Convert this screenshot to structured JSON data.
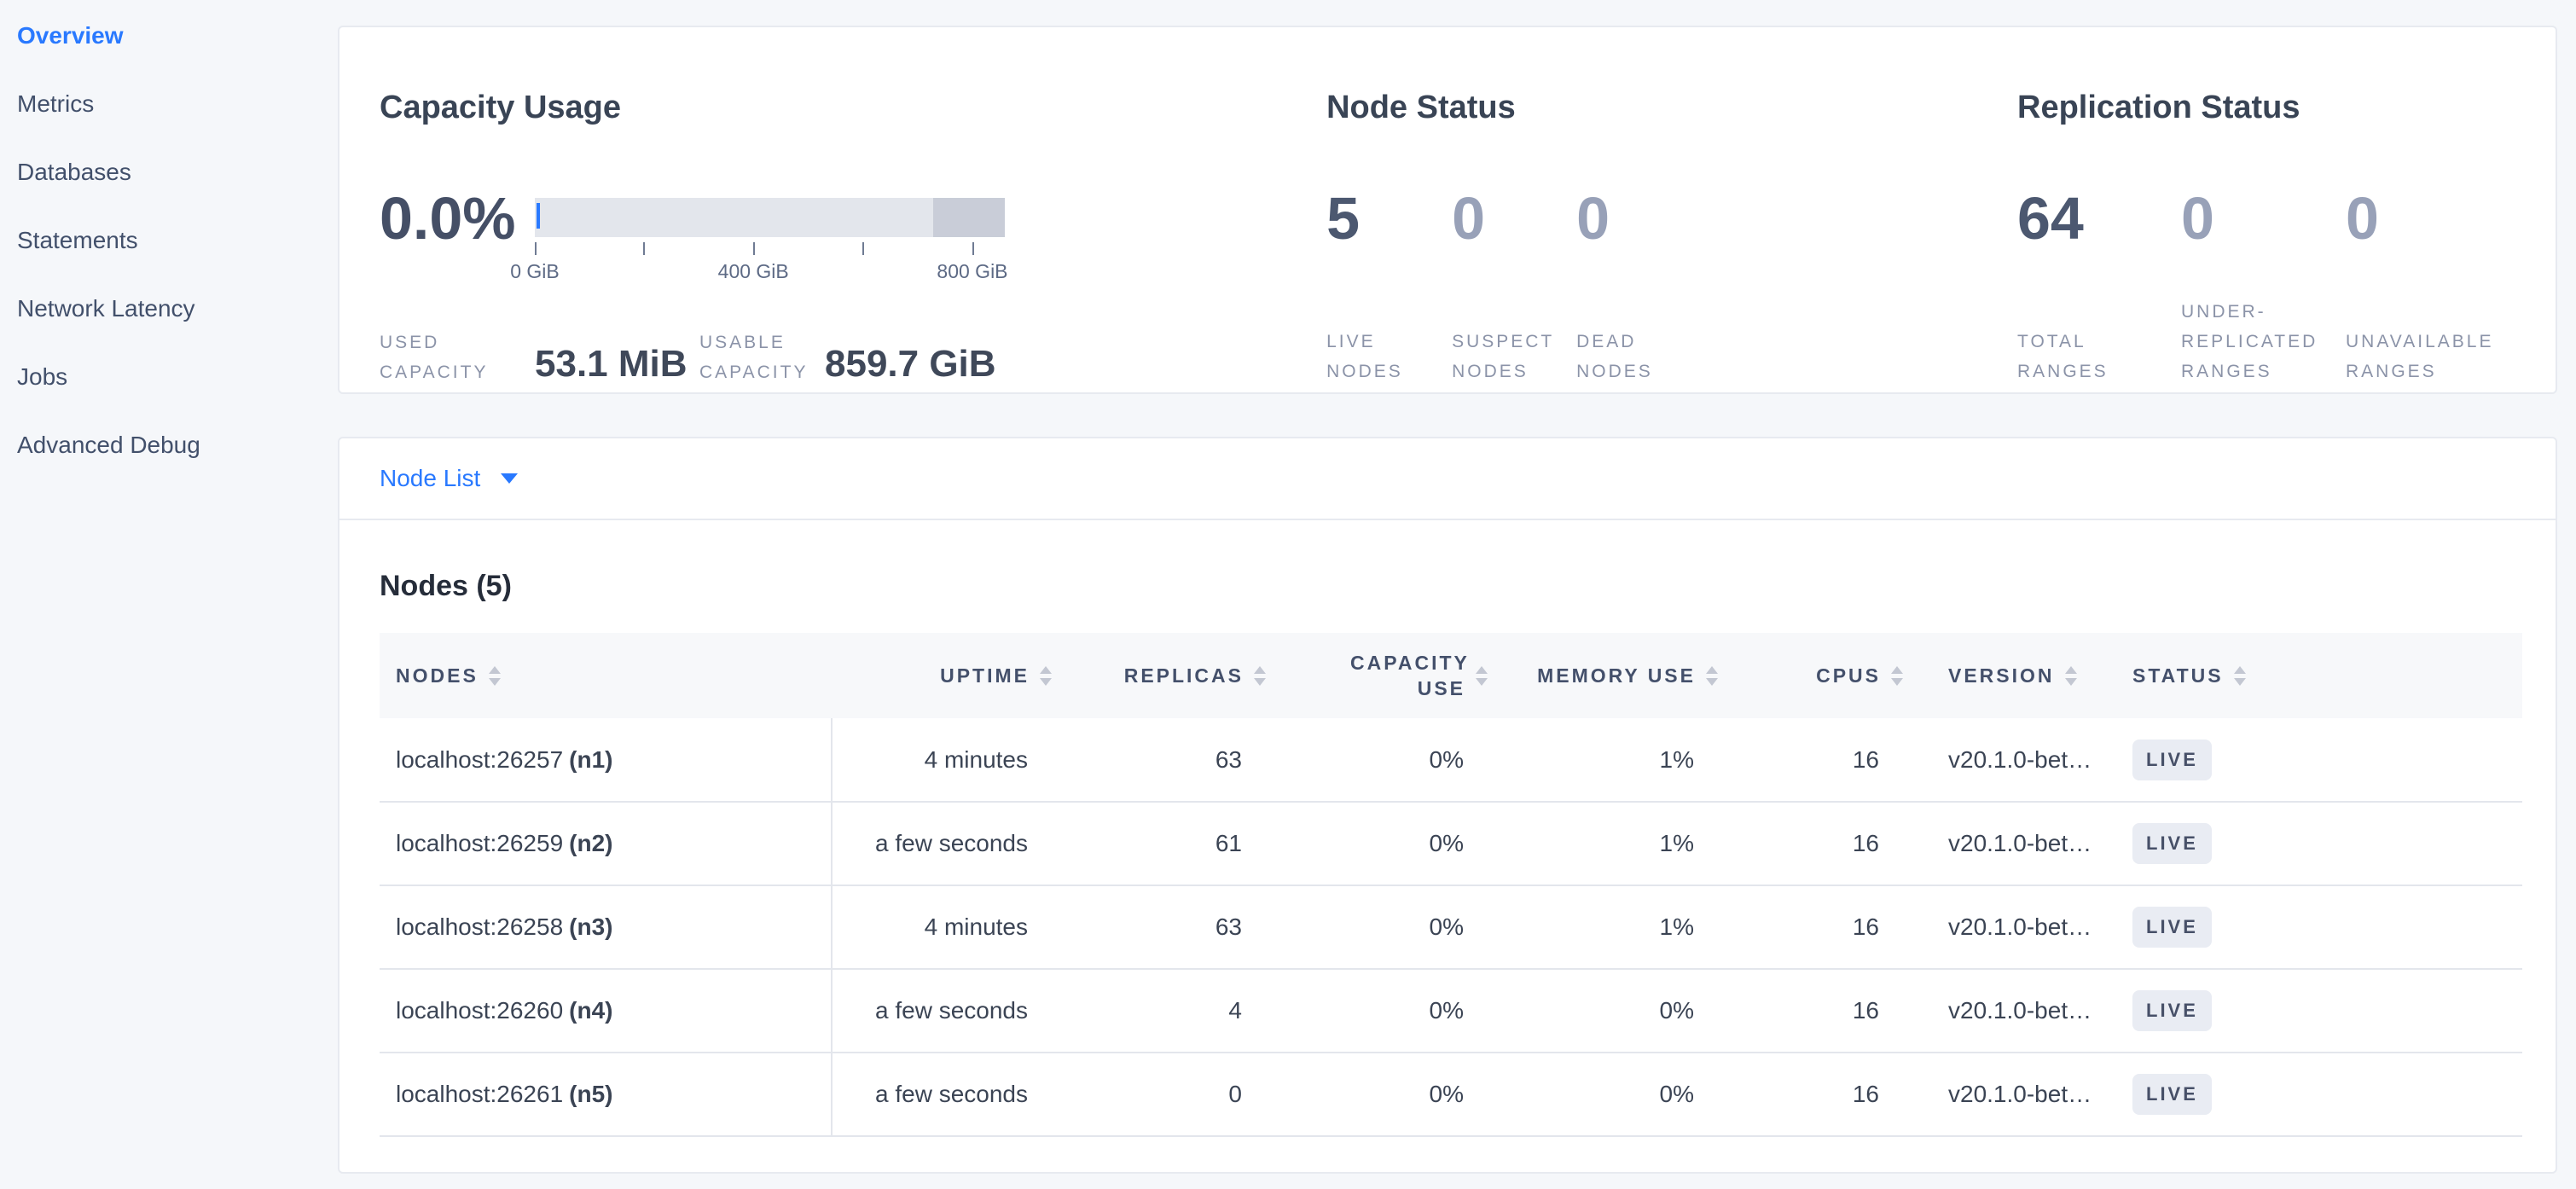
{
  "colors": {
    "accent": "#2979ff",
    "page-bg": "#f5f7fa",
    "heading": "#394455",
    "stat-dark": "#4c5870",
    "stat-muted": "#98a1b8",
    "badge-bg": "#e9ecf3",
    "badge-text": "#475068",
    "bar-light": "#e3e6ec",
    "bar-dark": "#c9cdd8"
  },
  "sidebar": {
    "items": [
      {
        "label": "Overview",
        "active": true
      },
      {
        "label": "Metrics",
        "active": false
      },
      {
        "label": "Databases",
        "active": false
      },
      {
        "label": "Statements",
        "active": false
      },
      {
        "label": "Network Latency",
        "active": false
      },
      {
        "label": "Jobs",
        "active": false
      },
      {
        "label": "Advanced Debug",
        "active": false
      }
    ]
  },
  "summary": {
    "capacity_usage": {
      "title": "Capacity Usage",
      "percent_used": "0.0%",
      "used_capacity_label": "USED CAPACITY",
      "used_capacity_value": "53.1 MiB",
      "usable_capacity_label": "USABLE CAPACITY",
      "usable_capacity_value": "859.7 GiB",
      "bar": {
        "ticks": [
          {
            "pos": 0,
            "label": "0 GiB"
          },
          {
            "pos": 23.0,
            "label": ""
          },
          {
            "pos": 46.5,
            "label": "400 GiB"
          },
          {
            "pos": 69.7,
            "label": ""
          },
          {
            "pos": 93.1,
            "label": "800 GiB"
          }
        ],
        "used_width_pct": 0.7,
        "secondary_segment_start_pct": 84.8
      }
    },
    "node_status": {
      "title": "Node Status",
      "stats": [
        {
          "value": "5",
          "label": "LIVE NODES"
        },
        {
          "value": "0",
          "label": "SUSPECT NODES"
        },
        {
          "value": "0",
          "label": "DEAD NODES"
        }
      ]
    },
    "replication_status": {
      "title": "Replication Status",
      "stats": [
        {
          "value": "64",
          "label": "TOTAL RANGES"
        },
        {
          "value": "0",
          "label": "UNDER-REPLICATED RANGES"
        },
        {
          "value": "0",
          "label": "UNAVAILABLE RANGES"
        }
      ]
    }
  },
  "view_selector": {
    "label": "Node List"
  },
  "nodes_table": {
    "title": "Nodes (5)",
    "columns": [
      "NODES",
      "UPTIME",
      "REPLICAS",
      "CAPACITY USE",
      "MEMORY USE",
      "CPUS",
      "VERSION",
      "STATUS"
    ],
    "rows": [
      {
        "address": "localhost:26257",
        "id": "(n1)",
        "uptime": "4 minutes",
        "replicas": "63",
        "capacity_use": "0%",
        "memory_use": "1%",
        "cpus": "16",
        "version": "v20.1.0-bet…",
        "status": "LIVE"
      },
      {
        "address": "localhost:26259",
        "id": "(n2)",
        "uptime": "a few seconds",
        "replicas": "61",
        "capacity_use": "0%",
        "memory_use": "1%",
        "cpus": "16",
        "version": "v20.1.0-bet…",
        "status": "LIVE"
      },
      {
        "address": "localhost:26258",
        "id": "(n3)",
        "uptime": "4 minutes",
        "replicas": "63",
        "capacity_use": "0%",
        "memory_use": "1%",
        "cpus": "16",
        "version": "v20.1.0-bet…",
        "status": "LIVE"
      },
      {
        "address": "localhost:26260",
        "id": "(n4)",
        "uptime": "a few seconds",
        "replicas": "4",
        "capacity_use": "0%",
        "memory_use": "0%",
        "cpus": "16",
        "version": "v20.1.0-bet…",
        "status": "LIVE"
      },
      {
        "address": "localhost:26261",
        "id": "(n5)",
        "uptime": "a few seconds",
        "replicas": "0",
        "capacity_use": "0%",
        "memory_use": "0%",
        "cpus": "16",
        "version": "v20.1.0-bet…",
        "status": "LIVE"
      }
    ]
  }
}
